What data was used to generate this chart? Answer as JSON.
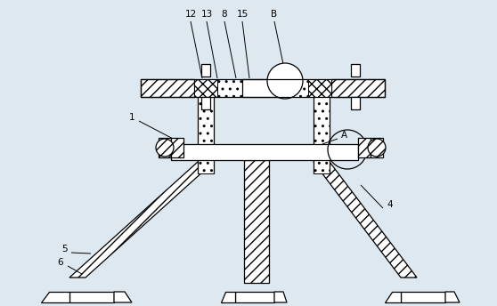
{
  "bg_color": "#dde8f0",
  "line_color": "#000000",
  "fig_w": 5.58,
  "fig_h": 3.44,
  "dpi": 100
}
